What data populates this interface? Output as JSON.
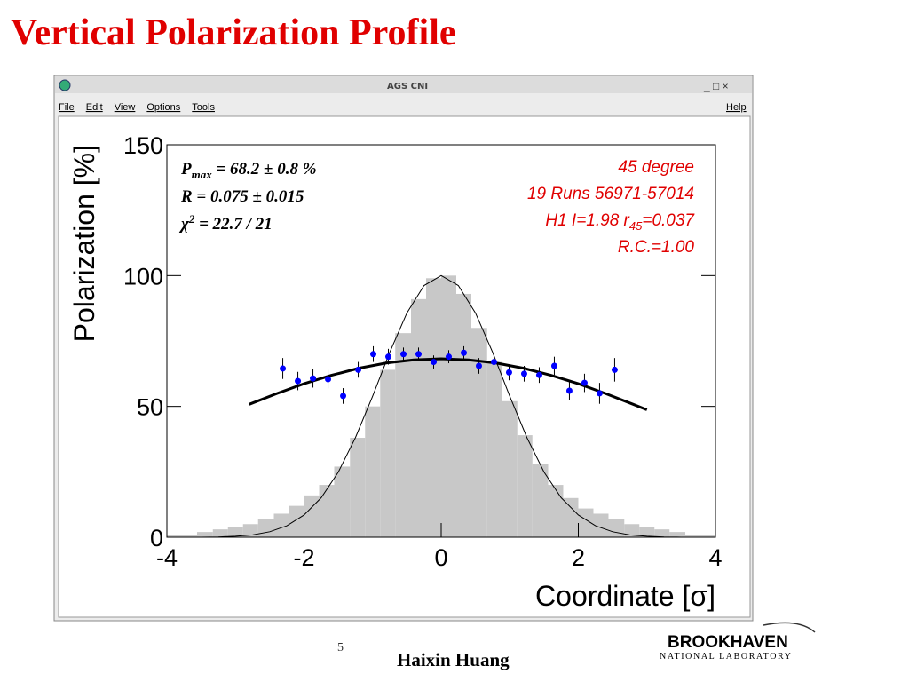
{
  "slide_title": "Vertical Polarization Profile",
  "window": {
    "title": "AGS CNI",
    "menu": [
      "File",
      "Edit",
      "View",
      "Options",
      "Tools"
    ],
    "help": "Help"
  },
  "footer": {
    "page": "5",
    "author": "Haixin Huang",
    "logo": [
      "BROOKHAVEN",
      "NATIONAL LABORATORY"
    ]
  },
  "chart_data": {
    "type": "scatter",
    "xlabel": "Coordinate [σ]",
    "ylabel": "Polarization [%]",
    "xlim": [
      -4,
      4
    ],
    "ylim": [
      0,
      150
    ],
    "xticks": [
      -4,
      -2,
      0,
      2,
      4
    ],
    "yticks": [
      0,
      50,
      100,
      150
    ],
    "stats": [
      [
        "P",
        "max",
        " = 68.2  ± 0.8 %"
      ],
      [
        "R =  0.075  ± 0.015"
      ],
      [
        "χ",
        "2",
        " = 22.7 / 21"
      ]
    ],
    "run_info": [
      [
        "45 degree"
      ],
      [
        "19 Runs 56971-57014"
      ],
      [
        "H1  I=1.98  r",
        "45",
        "=0.037"
      ],
      [
        "R.C.=1.00"
      ]
    ],
    "histogram": {
      "color": "#c8c8c8",
      "bins": [
        -4,
        -3.78,
        -3.56,
        -3.33,
        -3.11,
        -2.89,
        -2.67,
        -2.44,
        -2.22,
        -2,
        -1.78,
        -1.56,
        -1.33,
        -1.11,
        -0.89,
        -0.67,
        -0.44,
        -0.22,
        0,
        0.22,
        0.44,
        0.67,
        0.89,
        1.11,
        1.33,
        1.56,
        1.78,
        2,
        2.22,
        2.44,
        2.67,
        2.89,
        3.11,
        3.33,
        3.56,
        3.78,
        4
      ],
      "counts": [
        1,
        1,
        2,
        3,
        4,
        5,
        7,
        9,
        12,
        16,
        20,
        27,
        38,
        50,
        64,
        78,
        91,
        99,
        100,
        93,
        80,
        67,
        52,
        39,
        28,
        20,
        15,
        11,
        9,
        7,
        5,
        4,
        3,
        2,
        1,
        1
      ]
    },
    "gaussian": {
      "color": "#000000",
      "x": [
        -4,
        -3.75,
        -3.5,
        -3.25,
        -3,
        -2.75,
        -2.5,
        -2.25,
        -2,
        -1.75,
        -1.5,
        -1.25,
        -1,
        -0.75,
        -0.5,
        -0.25,
        0,
        0.25,
        0.5,
        0.75,
        1,
        1.25,
        1.5,
        1.75,
        2,
        2.25,
        2.5,
        2.75,
        3,
        3.25,
        3.5,
        3.75,
        4
      ],
      "values": [
        0,
        0,
        0,
        0.1,
        0.4,
        0.9,
        2.1,
        4.4,
        8.5,
        15.1,
        24.9,
        38.1,
        53.9,
        70.7,
        85.7,
        96.2,
        100,
        96.2,
        85.7,
        70.7,
        53.9,
        38.1,
        24.9,
        15.1,
        8.5,
        4.4,
        2.1,
        0.9,
        0.4,
        0.1,
        0,
        0,
        0
      ]
    },
    "fit": {
      "color": "#000000",
      "x": [
        -2.8,
        -2.4,
        -2,
        -1.6,
        -1.2,
        -0.8,
        -0.4,
        0,
        0.4,
        0.8,
        1.2,
        1.6,
        2,
        2.4,
        2.8,
        3
      ],
      "values": [
        50.8,
        54.9,
        58.7,
        61.9,
        64.6,
        66.6,
        67.8,
        68.2,
        67.8,
        66.6,
        64.6,
        61.9,
        58.7,
        54.9,
        50.8,
        48.7
      ]
    },
    "points": {
      "color": "#0000ff",
      "x": [
        -2.31,
        -2.09,
        -1.87,
        -1.65,
        -1.43,
        -1.21,
        -0.99,
        -0.77,
        -0.55,
        -0.33,
        -0.11,
        0.11,
        0.33,
        0.55,
        0.77,
        0.99,
        1.21,
        1.43,
        1.65,
        1.87,
        2.09,
        2.31,
        2.53
      ],
      "values": [
        64.5,
        59.7,
        60.7,
        60.4,
        54,
        64,
        70,
        69,
        70,
        70,
        67,
        69,
        70.5,
        65.5,
        67,
        63,
        62.5,
        62,
        65.5,
        56,
        59,
        55,
        64
      ],
      "errors": [
        4,
        3.5,
        3.5,
        3.5,
        3,
        3,
        3,
        3,
        2.5,
        2.5,
        2.5,
        2.5,
        2.5,
        3,
        3,
        3,
        3,
        3,
        3.5,
        3.5,
        3.5,
        4,
        4.5
      ]
    }
  }
}
